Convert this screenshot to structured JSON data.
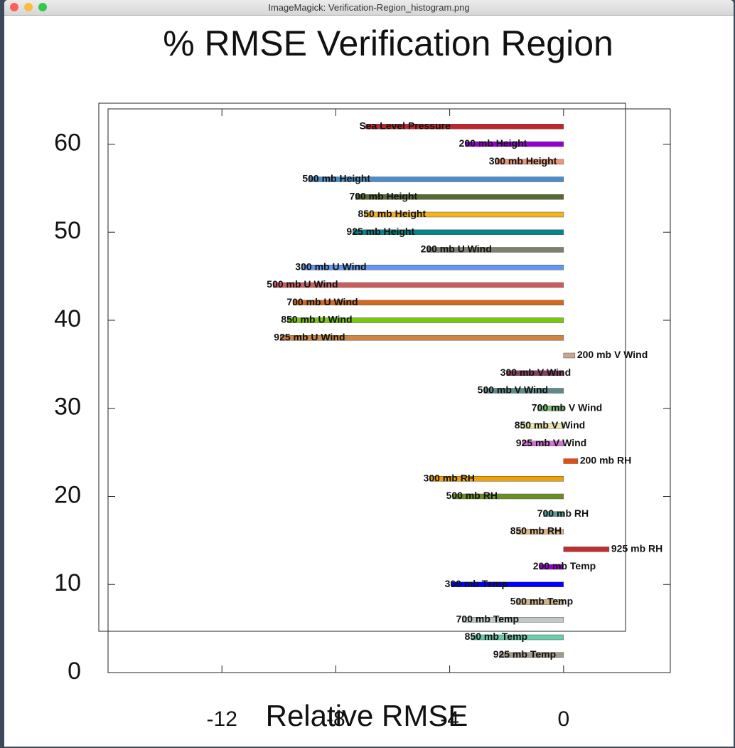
{
  "window": {
    "title": "ImageMagick: Verification-Region_histogram.png"
  },
  "chart_data": {
    "type": "bar",
    "orientation": "horizontal",
    "title": "% RMSE Verification Region",
    "xlabel": "Relative RMSE",
    "y": [
      62,
      60,
      58,
      56,
      54,
      52,
      50,
      48,
      46,
      44,
      42,
      40,
      38,
      36,
      34,
      32,
      30,
      28,
      26,
      24,
      22,
      20,
      18,
      16,
      14,
      12,
      10,
      8,
      6,
      4,
      2
    ],
    "categories": [
      "Sea Level Pressure",
      "200 mb Height",
      "300 mb Height",
      "500 mb Height",
      "700 mb Height",
      "850 mb Height",
      "925 mb Height",
      "200 mb U Wind",
      "300 mb U Wind",
      "500 mb U Wind",
      "700 mb U Wind",
      "850 mb U Wind",
      "925 mb U Wind",
      "200 mb V Wind",
      "300 mb V Wind",
      "500 mb V Wind",
      "700 mb V Wind",
      "850 mb V Wind",
      "925 mb V Wind",
      "200 mb RH",
      "300 mb RH",
      "500 mb RH",
      "700 mb RH",
      "850 mb RH",
      "925 mb RH",
      "200 mb Temp",
      "300 mb Temp",
      "500 mb Temp",
      "700 mb Temp",
      "850 mb Temp",
      "925 mb Temp"
    ],
    "values": [
      -6.95,
      -3.45,
      -2.4,
      -8.95,
      -7.3,
      -7.0,
      -7.4,
      -4.8,
      -9.2,
      -10.2,
      -9.5,
      -9.7,
      -9.95,
      0.4,
      -2.0,
      -2.8,
      -0.9,
      -1.5,
      -1.45,
      0.5,
      -4.7,
      -3.9,
      -0.7,
      -1.65,
      1.6,
      -0.85,
      -3.95,
      -1.65,
      -3.55,
      -3.25,
      -2.25
    ],
    "colors": [
      "#c0272d",
      "#9400d3",
      "#e9967a",
      "#4a8fc9",
      "#556b2f",
      "#f4b41a",
      "#00868b",
      "#7f7f6f",
      "#6495ed",
      "#cd5c5c",
      "#d2691e",
      "#7ac70c",
      "#cd853f",
      "#c8a88a",
      "#8b3a62",
      "#5f8a8b",
      "#7cc47c",
      "#eee8aa",
      "#da70d6",
      "#e84a14",
      "#f0a000",
      "#6b8e23",
      "#5f9ea0",
      "#deb887",
      "#c03030",
      "#9400d3",
      "#0000ff",
      "#d2b48c",
      "#c0c8c8",
      "#66cdaa",
      "#a89a8a"
    ],
    "xlim": [
      -16,
      3.75
    ],
    "ylim": [
      0,
      64
    ],
    "xticks": [
      -12,
      -8,
      -4,
      0
    ],
    "yticks": [
      0,
      10,
      20,
      30,
      40,
      50,
      60
    ]
  }
}
